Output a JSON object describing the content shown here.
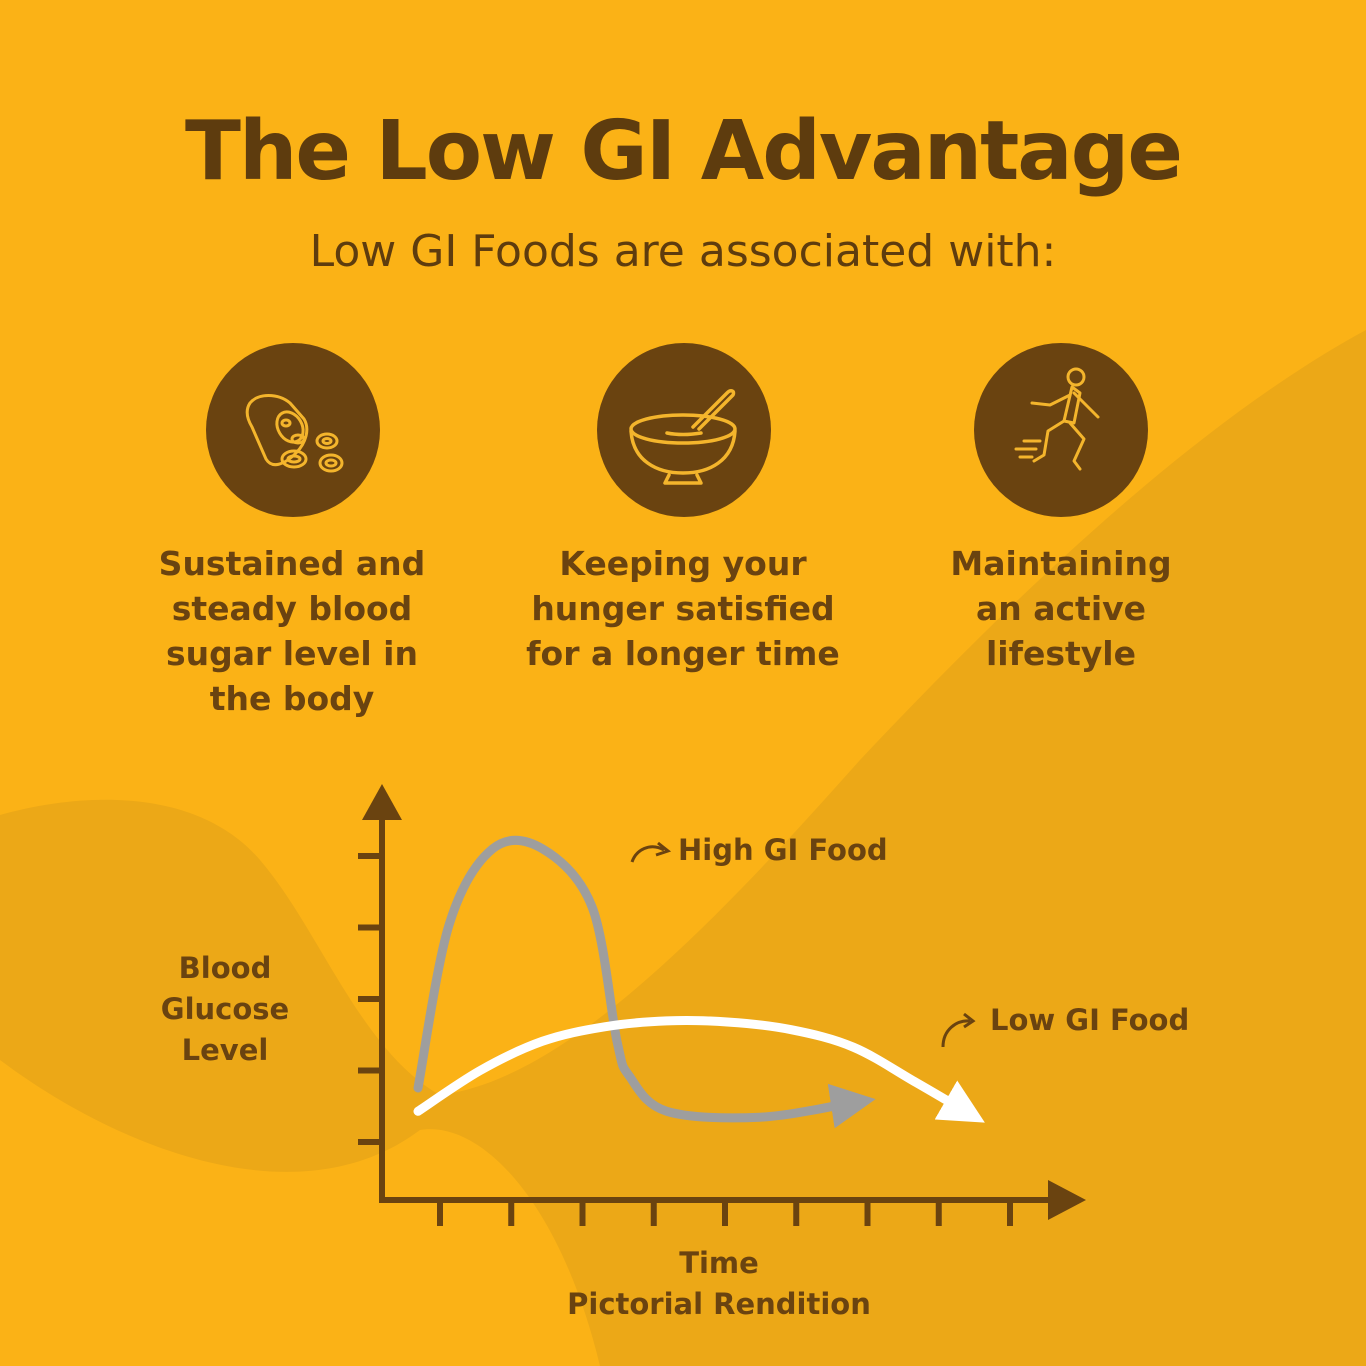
{
  "header": {
    "title": "The Low GI Advantage",
    "subtitle": "Low GI Foods are associated with:"
  },
  "benefits": [
    {
      "icon": "beans-icon",
      "line1": "Sustained and",
      "line2": "steady blood",
      "line3": "sugar level in",
      "line4": "the body"
    },
    {
      "icon": "bowl-icon",
      "line1": "Keeping your",
      "line2": "hunger satisfied",
      "line3": "for a longer time"
    },
    {
      "icon": "runner-icon",
      "line1": "Maintaining",
      "line2": "an active",
      "line3": "lifestyle"
    }
  ],
  "colors": {
    "background": "#FBB216",
    "brown": "#6A4310",
    "high_gi": "#9E9E9E",
    "low_gi": "#FFFFFF"
  },
  "chart_data": {
    "type": "line",
    "ylabel": [
      "Blood",
      "Glucose",
      "Level"
    ],
    "xlabel": "Time",
    "caption": "Pictorial Rendition",
    "x_ticks": 9,
    "y_ticks": 5,
    "xlim": [
      0,
      10
    ],
    "ylim": [
      0,
      6
    ],
    "series": [
      {
        "name": "High GI Food",
        "color": "#9E9E9E",
        "x": [
          0,
          0.5,
          1.2,
          2.0,
          2.8,
          3.2,
          3.4,
          4.0,
          5.5,
          7.0
        ],
        "y": [
          1.2,
          4.0,
          5.3,
          5.3,
          4.3,
          2.0,
          1.4,
          0.8,
          0.7,
          0.95
        ]
      },
      {
        "name": "Low GI Food",
        "color": "#FFFFFF",
        "x": [
          0,
          1.0,
          2.0,
          3.0,
          4.0,
          5.0,
          6.0,
          7.0,
          8.0,
          8.8
        ],
        "y": [
          0.8,
          1.5,
          2.0,
          2.25,
          2.35,
          2.33,
          2.2,
          1.9,
          1.3,
          0.8
        ]
      }
    ]
  }
}
